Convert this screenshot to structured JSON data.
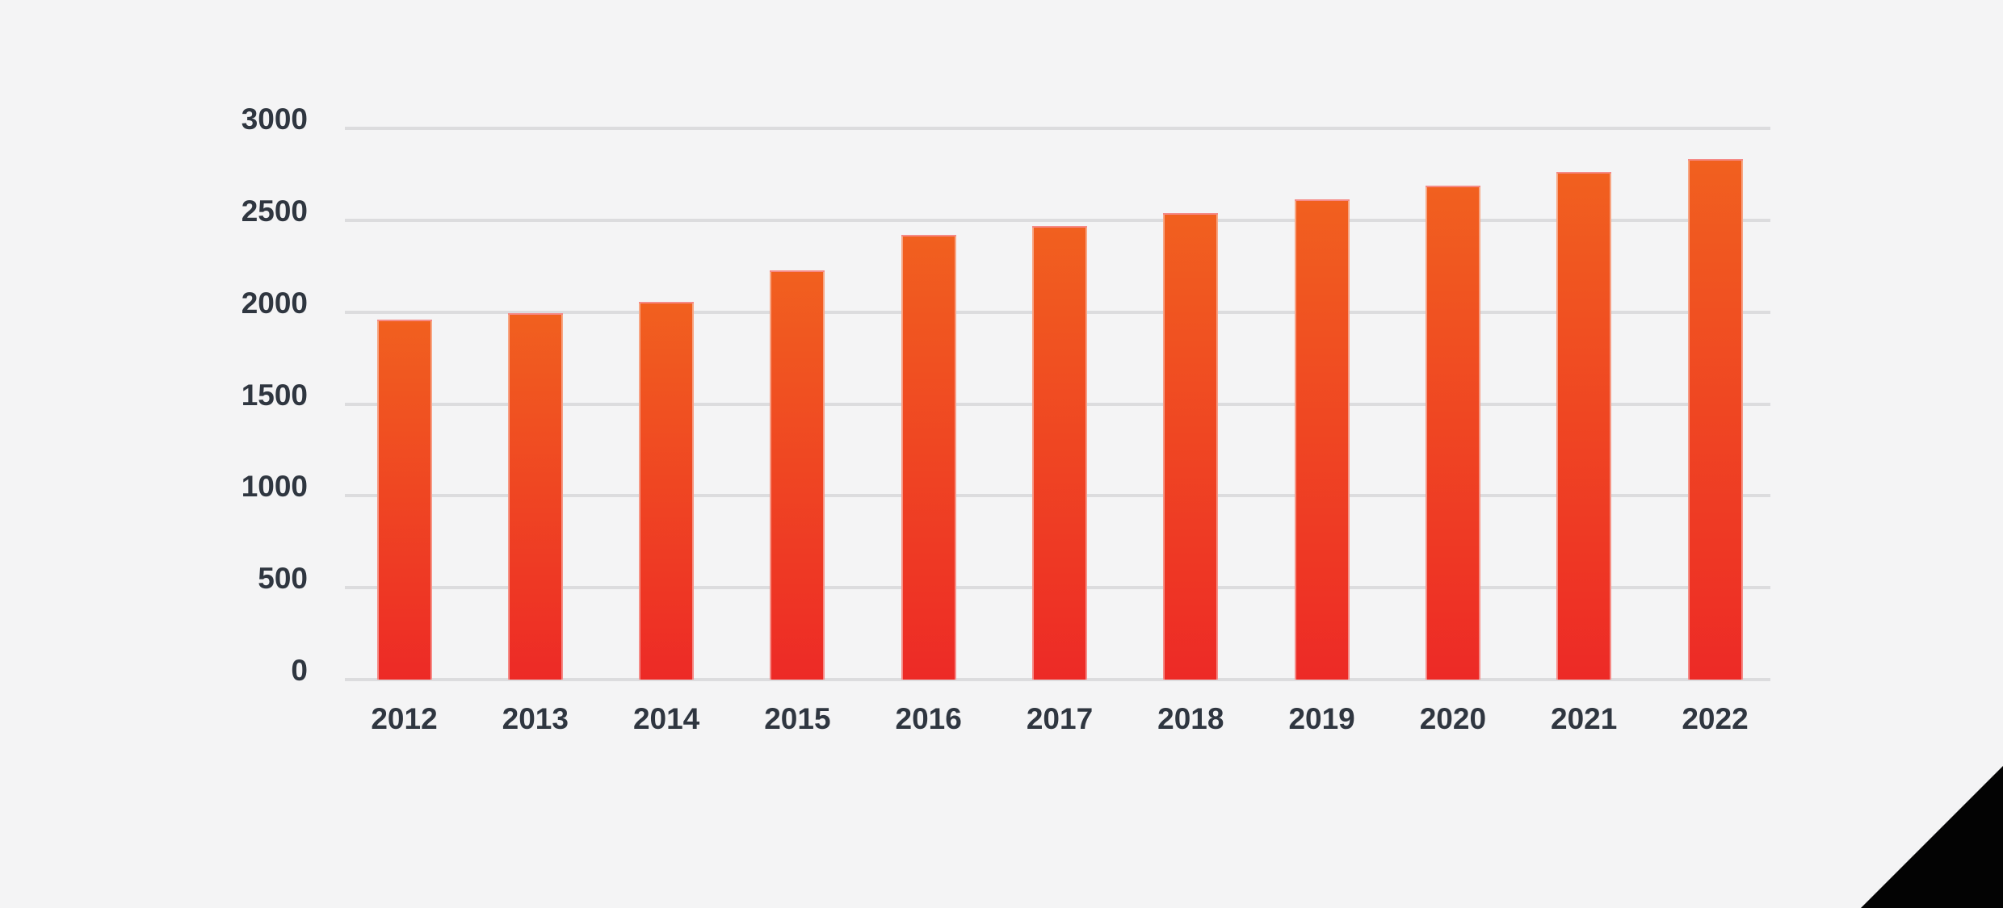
{
  "chart_data": {
    "type": "bar",
    "title": "",
    "xlabel": "",
    "ylabel": "",
    "categories": [
      "2012",
      "2013",
      "2014",
      "2015",
      "2016",
      "2017",
      "2018",
      "2019",
      "2020",
      "2021",
      "2022"
    ],
    "values": [
      1960,
      1995,
      2055,
      2225,
      2420,
      2470,
      2540,
      2615,
      2690,
      2765,
      2835
    ],
    "ylim": [
      0,
      3000
    ],
    "yticks": [
      0,
      500,
      1000,
      1500,
      2000,
      2500,
      3000
    ],
    "grid": "horizontal",
    "legend": "none",
    "colors": {
      "background": "#f4f4f5",
      "gridline": "#dcdcde",
      "tick_text": "#2f3640",
      "bar_gradient_top": "#f1601f",
      "bar_gradient_bottom": "#ed2a26",
      "bar_outline": "rgba(255,255,255,0.45)",
      "corner_triangle": "#030303"
    }
  }
}
